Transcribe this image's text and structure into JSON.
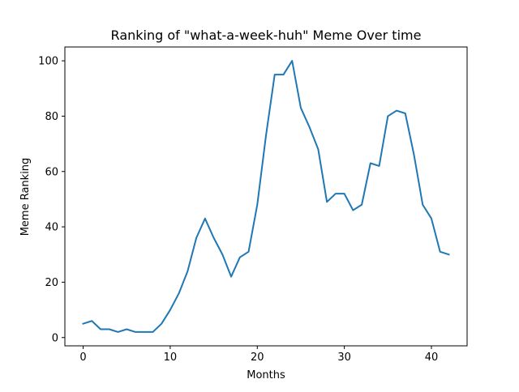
{
  "chart_data": {
    "type": "line",
    "title": "Ranking of \"what-a-week-huh\" Meme Over time",
    "xlabel": "Months",
    "ylabel": "Meme Ranking",
    "xlim": [
      -2.1,
      44.1
    ],
    "ylim": [
      -3.0,
      105.0
    ],
    "xticks": [
      0,
      10,
      20,
      30,
      40
    ],
    "yticks": [
      0,
      20,
      40,
      60,
      80,
      100
    ],
    "grid": false,
    "legend": "none",
    "series": [
      {
        "color": "#1f77b4",
        "x": [
          0,
          1,
          2,
          3,
          4,
          5,
          6,
          7,
          8,
          9,
          10,
          11,
          12,
          13,
          14,
          15,
          16,
          17,
          18,
          19,
          20,
          21,
          22,
          23,
          24,
          25,
          26,
          27,
          28,
          29,
          30,
          31,
          32,
          33,
          34,
          35,
          36,
          37,
          38,
          39,
          40,
          41,
          42
        ],
        "values": [
          5,
          6,
          3,
          3,
          2,
          3,
          2,
          2,
          2,
          5,
          10,
          16,
          24,
          36,
          43,
          36,
          30,
          22,
          29,
          31,
          48,
          73,
          95,
          95,
          100,
          83,
          76,
          68,
          49,
          52,
          52,
          46,
          48,
          63,
          62,
          80,
          82,
          81,
          66,
          48,
          43,
          31,
          30
        ]
      }
    ]
  }
}
